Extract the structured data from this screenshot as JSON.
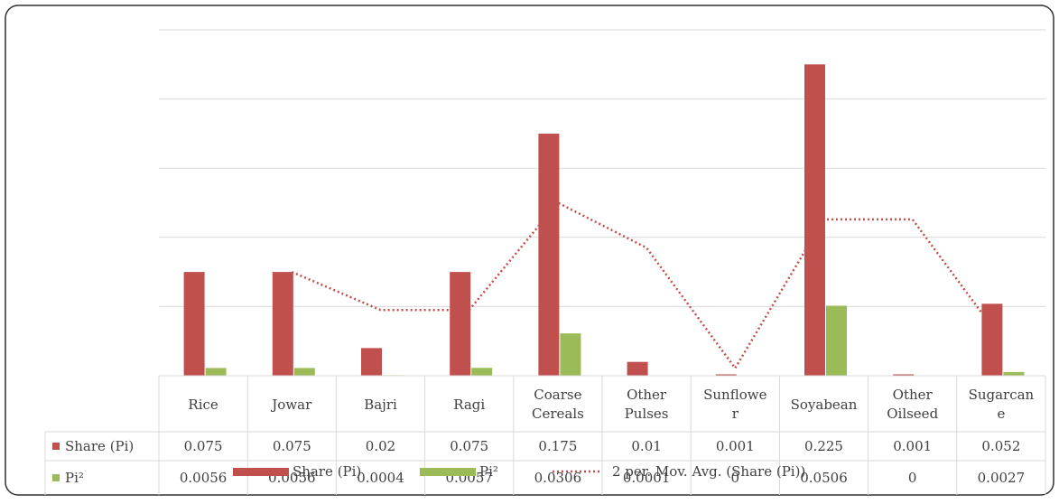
{
  "chart_data": {
    "type": "bar",
    "title": "",
    "xlabel": "",
    "ylabel": "",
    "categories": [
      "Rice",
      "Jowar",
      "Bajri",
      "Ragi",
      "Coarse Cereals",
      "Other Pulses",
      "Sunflower",
      "Soyabean",
      "Other Oilseed",
      "Sugarcane"
    ],
    "category_lines": [
      [
        "Rice"
      ],
      [
        "Jowar"
      ],
      [
        "Bajri"
      ],
      [
        "Ragi"
      ],
      [
        "Coarse",
        "Cereals"
      ],
      [
        "Other",
        "Pulses"
      ],
      [
        "Sunflowe",
        "r"
      ],
      [
        "Soyabean"
      ],
      [
        "Other",
        "Oilseed"
      ],
      [
        "Sugarcan",
        "e"
      ]
    ],
    "ylim": [
      0,
      0.25
    ],
    "y_grid_step": 0.05,
    "grid": true,
    "legend_position": "bottom",
    "series": [
      {
        "name": "Share (Pi)",
        "color": "#c0504d",
        "values": [
          0.075,
          0.075,
          0.02,
          0.075,
          0.175,
          0.01,
          0.001,
          0.225,
          0.001,
          0.052
        ],
        "labels": [
          "0.075",
          "0.075",
          "0.02",
          "0.075",
          "0.175",
          "0.01",
          "0.001",
          "0.225",
          "0.001",
          "0.052"
        ]
      },
      {
        "name": "Pi²",
        "color": "#9bbb59",
        "values": [
          0.0056,
          0.0056,
          0.0004,
          0.0057,
          0.0306,
          0.0001,
          0,
          0.0506,
          0,
          0.0027
        ],
        "labels": [
          "0.0056",
          "0.0056",
          "0.0004",
          "0.0057",
          "0.0306",
          "0.0001",
          "0",
          "0.0506",
          "0",
          "0.0027"
        ]
      }
    ],
    "trendline": {
      "name": "2 per. Mov. Avg. (Share (Pi))",
      "color": "#c0504d",
      "style": "dotted",
      "values": [
        null,
        0.075,
        0.0475,
        0.0475,
        0.125,
        0.0925,
        0.0055,
        0.113,
        0.113,
        0.0265
      ]
    }
  }
}
